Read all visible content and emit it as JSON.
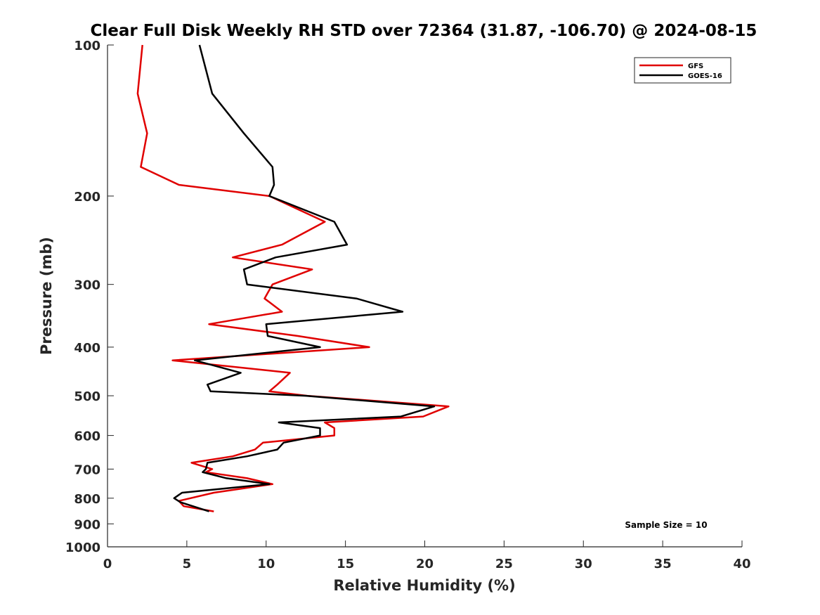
{
  "chart_data": {
    "type": "line",
    "title": "Clear Full Disk Weekly RH STD over 72364 (31.87, -106.70) @ 2024-08-15",
    "xlabel": "Relative Humidity (%)",
    "ylabel": "Pressure (mb)",
    "xlim": [
      0,
      40
    ],
    "ylim": [
      100,
      1000
    ],
    "yscale": "log",
    "y_reversed": true,
    "xticks": [
      0,
      5,
      10,
      15,
      20,
      25,
      30,
      35,
      40
    ],
    "yticks": [
      100,
      200,
      300,
      400,
      500,
      600,
      700,
      800,
      900,
      1000
    ],
    "grid": false,
    "legend_position": "top-right",
    "annotation": "Sample Size = 10",
    "series": [
      {
        "name": "GFS",
        "color": "#e00000",
        "points": [
          [
            2.2,
            100
          ],
          [
            1.9,
            125
          ],
          [
            2.5,
            150
          ],
          [
            2.1,
            175
          ],
          [
            4.5,
            190
          ],
          [
            10.2,
            200
          ],
          [
            13.7,
            225
          ],
          [
            11.0,
            250
          ],
          [
            7.9,
            265
          ],
          [
            12.9,
            280
          ],
          [
            10.4,
            300
          ],
          [
            9.9,
            320
          ],
          [
            11.0,
            340
          ],
          [
            6.4,
            360
          ],
          [
            12.0,
            380
          ],
          [
            16.5,
            400
          ],
          [
            4.1,
            425
          ],
          [
            11.5,
            450
          ],
          [
            10.7,
            475
          ],
          [
            10.2,
            490
          ],
          [
            12.6,
            500
          ],
          [
            21.5,
            525
          ],
          [
            19.9,
            550
          ],
          [
            13.7,
            565
          ],
          [
            14.3,
            580
          ],
          [
            14.3,
            600
          ],
          [
            9.8,
            620
          ],
          [
            9.3,
            640
          ],
          [
            7.9,
            660
          ],
          [
            5.3,
            680
          ],
          [
            6.6,
            700
          ],
          [
            6.2,
            710
          ],
          [
            8.8,
            730
          ],
          [
            10.4,
            750
          ],
          [
            6.7,
            780
          ],
          [
            4.5,
            810
          ],
          [
            4.8,
            830
          ],
          [
            6.7,
            850
          ]
        ]
      },
      {
        "name": "GOES-16",
        "color": "#000000",
        "points": [
          [
            5.8,
            100
          ],
          [
            6.6,
            125
          ],
          [
            8.6,
            150
          ],
          [
            10.4,
            175
          ],
          [
            10.5,
            190
          ],
          [
            10.2,
            200
          ],
          [
            14.3,
            225
          ],
          [
            15.1,
            250
          ],
          [
            10.6,
            265
          ],
          [
            8.6,
            280
          ],
          [
            8.8,
            300
          ],
          [
            15.7,
            320
          ],
          [
            18.6,
            340
          ],
          [
            10.0,
            360
          ],
          [
            10.1,
            380
          ],
          [
            13.4,
            400
          ],
          [
            5.5,
            425
          ],
          [
            8.4,
            450
          ],
          [
            6.3,
            475
          ],
          [
            6.5,
            490
          ],
          [
            12.5,
            500
          ],
          [
            20.6,
            525
          ],
          [
            18.5,
            550
          ],
          [
            10.8,
            565
          ],
          [
            13.4,
            580
          ],
          [
            13.4,
            600
          ],
          [
            11.1,
            620
          ],
          [
            10.7,
            640
          ],
          [
            8.8,
            660
          ],
          [
            6.3,
            680
          ],
          [
            6.2,
            700
          ],
          [
            6.0,
            710
          ],
          [
            7.5,
            730
          ],
          [
            10.2,
            750
          ],
          [
            4.7,
            780
          ],
          [
            4.2,
            800
          ],
          [
            4.6,
            815
          ],
          [
            6.4,
            850
          ]
        ]
      }
    ]
  }
}
